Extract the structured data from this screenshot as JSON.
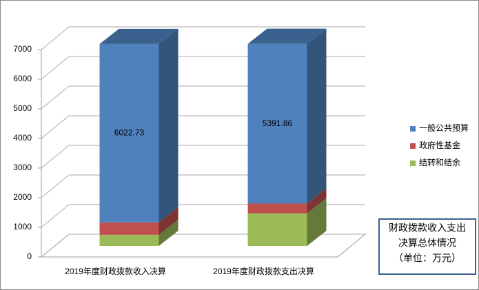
{
  "chart_data": {
    "type": "bar3d_stacked",
    "categories": [
      "2019年度财政拨款收入决算",
      "2019年度财政拨款支出决算"
    ],
    "series": [
      {
        "name": "一般公共预算",
        "color": "#4f81bd",
        "values": [
          6022.73,
          5391.86
        ]
      },
      {
        "name": "政府性基金",
        "color": "#c0504d",
        "values": [
          420,
          330
        ]
      },
      {
        "name": "结转和结余",
        "color": "#9bbb59",
        "values": [
          375,
          1100
        ]
      }
    ],
    "stack_order": [
      2,
      1,
      0
    ],
    "data_labels_series": 0,
    "ylim": [
      0,
      7000
    ],
    "yticks": [
      0,
      1000,
      2000,
      3000,
      4000,
      5000,
      6000,
      7000
    ],
    "grid": true,
    "legend": "right",
    "annotation": [
      "财政拨款收入支出",
      "决算总体情况",
      "（单位：万元）"
    ]
  }
}
